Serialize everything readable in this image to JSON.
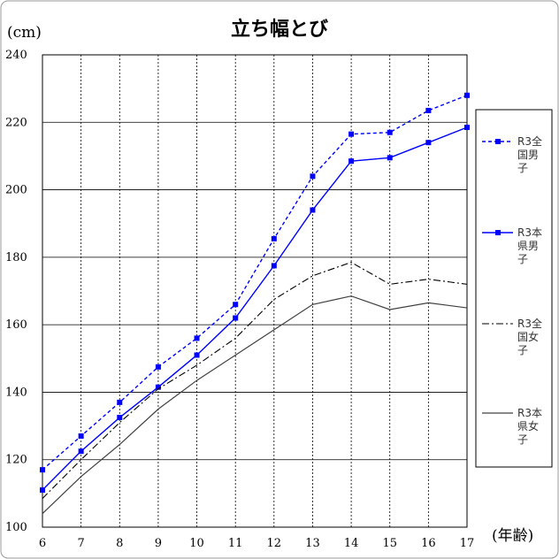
{
  "chart_data": {
    "type": "line",
    "title": "立ち幅とび",
    "ylabel": "(cm)",
    "xlabel": "(年齢)",
    "categories": [
      "6",
      "7",
      "8",
      "9",
      "10",
      "11",
      "12",
      "13",
      "14",
      "15",
      "16",
      "17"
    ],
    "ylim": [
      100,
      240
    ],
    "yticks": [
      "100",
      "120",
      "140",
      "160",
      "180",
      "200",
      "220",
      "240"
    ],
    "grid": true,
    "legend_position": "right",
    "series": [
      {
        "name": "R3全国男子",
        "legend_lines": [
          "R3全",
          "国男",
          "子"
        ],
        "color": "#0000ff",
        "style": "dashed-square-markers",
        "values": [
          117,
          127,
          137,
          147.5,
          156,
          166,
          185.5,
          204,
          216.5,
          217,
          223.5,
          228
        ]
      },
      {
        "name": "R3本県男子",
        "legend_lines": [
          "R3本",
          "県男",
          "子"
        ],
        "color": "#0000ff",
        "style": "solid-square-markers",
        "values": [
          111,
          122.5,
          132.5,
          141.5,
          151,
          162,
          177.5,
          194,
          208.5,
          209.5,
          214,
          218.5
        ]
      },
      {
        "name": "R3全国女子",
        "legend_lines": [
          "R3全",
          "国女",
          "子"
        ],
        "color": "#000000",
        "style": "dash-dot",
        "values": [
          108.5,
          120,
          131,
          141,
          148,
          156,
          167.5,
          174.5,
          178.5,
          172,
          173.5,
          172
        ]
      },
      {
        "name": "R3本県女子",
        "legend_lines": [
          "R3本",
          "県女",
          "子"
        ],
        "color": "#404040",
        "style": "solid",
        "values": [
          104,
          115,
          124.5,
          135,
          143.5,
          151,
          158.5,
          166,
          168.5,
          164.5,
          166.5,
          165
        ]
      }
    ]
  }
}
